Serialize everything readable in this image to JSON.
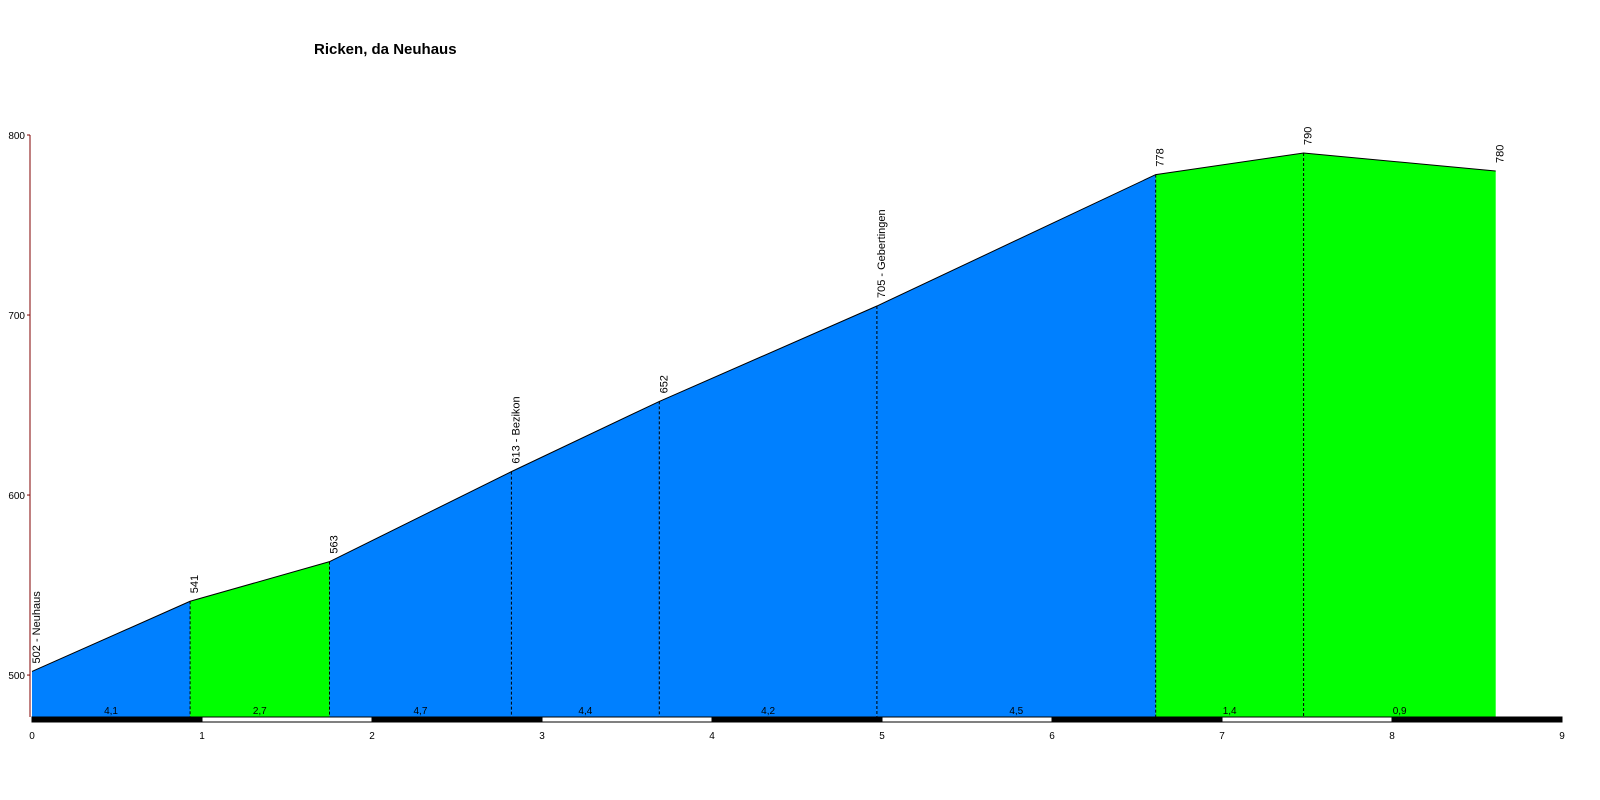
{
  "chart_data": {
    "type": "area",
    "title": "Ricken, da Neuhaus",
    "x": [
      0,
      0.93,
      1.75,
      2.82,
      3.69,
      4.97,
      6.61,
      7.48,
      8.61
    ],
    "values": [
      502,
      541,
      563,
      613,
      652,
      705,
      778,
      790,
      780
    ],
    "value_labels": [
      "502 - Neuhaus",
      "541",
      "563",
      "613 - Bezikon",
      "652",
      "705 - Gebertingen",
      "778",
      "790",
      "780"
    ],
    "segments": {
      "values": [
        4.1,
        2.7,
        4.7,
        4.4,
        4.2,
        4.5,
        1.4,
        0.9
      ],
      "value_labels": [
        "4,1",
        "2,7",
        "4,7",
        "4,4",
        "4,2",
        "4,5",
        "1,4",
        "0,9"
      ],
      "colors": [
        "#0080ff",
        "#00ff00",
        "#0080ff",
        "#0080ff",
        "#0080ff",
        "#0080ff",
        "#00ff00",
        "#00ff00"
      ]
    },
    "xlim": [
      0,
      9
    ],
    "xticks": [
      0,
      1,
      2,
      3,
      4,
      5,
      6,
      7,
      8,
      9
    ],
    "ylim": [
      476.7,
      800
    ],
    "yticks": [
      500,
      600,
      700,
      800
    ]
  }
}
